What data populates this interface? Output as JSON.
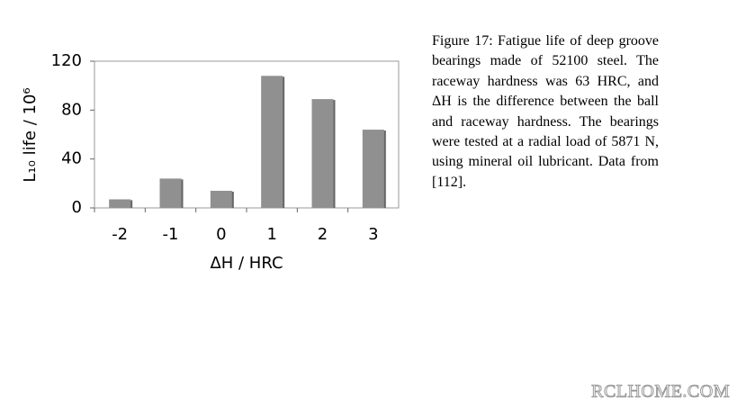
{
  "chart_data": {
    "type": "bar",
    "ylabel": "L₁₀ life / 10⁶",
    "xlabel": "ΔH / HRC",
    "categories": [
      "-2",
      "-1",
      "0",
      "1",
      "2",
      "3"
    ],
    "values": [
      7,
      24,
      14,
      108,
      89,
      64
    ],
    "color": "#909090",
    "ylim": [
      0,
      120
    ],
    "yticks": [
      0,
      40,
      80,
      120
    ],
    "grid": false
  },
  "caption": "Figure 17: Fatigue life of deep groove bearings made of 52100 steel. The raceway hardness was 63 HRC, and ΔH is the difference between the ball and raceway hardness. The bearings were tested at a radial load of 5871 N, using mineral oil lubricant. Data from [112].",
  "watermark": "RCLHOME.COM"
}
